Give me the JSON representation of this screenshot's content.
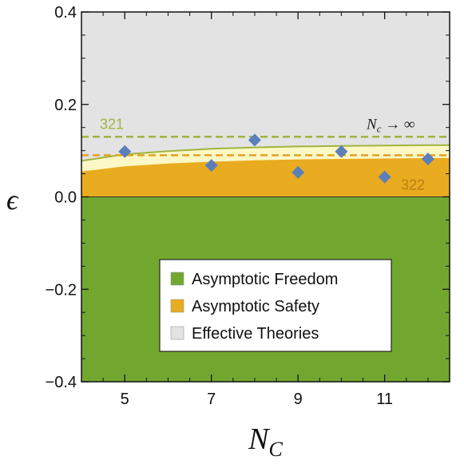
{
  "chart_data": {
    "type": "scatter",
    "xlabel": "N",
    "xlabel_sub": "C",
    "ylabel": "ϵ",
    "xlim": [
      4,
      12.5
    ],
    "ylim": [
      -0.4,
      0.4
    ],
    "x_ticks": [
      5,
      7,
      9,
      11
    ],
    "x_tick_labels": [
      "5",
      "7",
      "9",
      "11"
    ],
    "y_ticks": [
      -0.4,
      -0.2,
      0.0,
      0.2,
      0.4
    ],
    "y_tick_labels": [
      "−0.4",
      "−0.2",
      "0.0",
      "0.2",
      "0.4"
    ],
    "grid": false,
    "regions": [
      {
        "name": "Asymptotic Freedom",
        "color": "#72a72f",
        "y_range": [
          -0.4,
          0.0
        ]
      },
      {
        "name": "Asymptotic Safety",
        "color": "#e9ab1f",
        "lower": 0.0,
        "upper_x": [
          4,
          5,
          6,
          7,
          8,
          9,
          10,
          11,
          12,
          12.5
        ],
        "upper_y": [
          0.055,
          0.066,
          0.072,
          0.076,
          0.079,
          0.081,
          0.082,
          0.083,
          0.084,
          0.084
        ]
      },
      {
        "name": "Asymptotic Safety band",
        "color": "#fcf8c6",
        "upper_x": [
          4,
          5,
          6,
          7,
          8,
          9,
          10,
          11,
          12,
          12.5
        ],
        "upper_y": [
          0.078,
          0.092,
          0.099,
          0.104,
          0.107,
          0.109,
          0.11,
          0.111,
          0.112,
          0.112
        ]
      },
      {
        "name": "Effective Theories",
        "color": "#e3e3e3",
        "y_range": [
          0.0,
          0.4
        ]
      }
    ],
    "reference_lines": [
      {
        "label": "321",
        "y": 0.13,
        "style": "dashed",
        "color": "#9fb540"
      },
      {
        "label": "322",
        "y": 0.09,
        "style": "dashed",
        "color": "#e3a126"
      }
    ],
    "limit_label": "N",
    "limit_label_sub": "c",
    "limit_label_rest": " → ∞",
    "series": [
      {
        "x": [
          5,
          7,
          8,
          9,
          10,
          11,
          12
        ],
        "y": [
          0.098,
          0.068,
          0.123,
          0.053,
          0.098,
          0.043,
          0.082
        ],
        "color": "#5b7fb8",
        "marker": "diamond"
      }
    ],
    "legend": {
      "position": "bottom-right",
      "entries": [
        {
          "label": "Asymptotic Freedom",
          "color": "#72a72f"
        },
        {
          "label": "Asymptotic Safety",
          "color": "#e9ab1f"
        },
        {
          "label": "Effective Theories",
          "color": "#e3e3e3"
        }
      ]
    }
  }
}
